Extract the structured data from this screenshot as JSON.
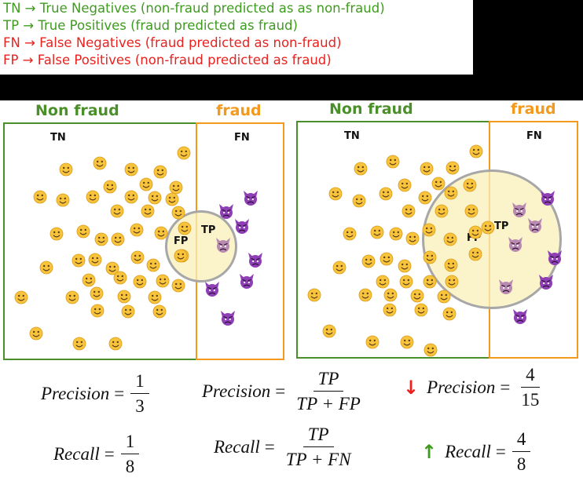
{
  "legend": [
    {
      "text": "TN → True Negatives (non-fraud predicted as as non-fraud)",
      "color": "#3f9b1f"
    },
    {
      "text": "TP → True Positives (fraud predicted as fraud)",
      "color": "#3f9b1f"
    },
    {
      "text": "FN → False Negatives (fraud predicted as non-fraud)",
      "color": "#e8231f"
    },
    {
      "text": "FP → False Positives (non-fraud predicted as fraud)",
      "color": "#e8231f"
    }
  ],
  "colors": {
    "non_fraud": "#4a8f2a",
    "fraud": "#f39a1e",
    "smiley": "#f7c43b",
    "devil": "#8e3fb5",
    "down_arrow": "#e8231f",
    "up_arrow": "#3f9b1f"
  },
  "left_panel": {
    "non_fraud_label": "Non fraud",
    "fraud_label": "fraud",
    "tn": "TN",
    "fn": "FN",
    "fp": "FP",
    "tp": "TP"
  },
  "right_panel": {
    "non_fraud_label": "Non fraud",
    "fraud_label": "fraud",
    "tn": "TN",
    "fn": "FN",
    "fp": "FP",
    "tp": "TP"
  },
  "icons": {
    "non_fraud": "smiley-face-icon",
    "fraud": "devil-face-icon"
  },
  "formulas": {
    "precision_word": "Precision",
    "recall_word": "Recall",
    "equals": "=",
    "left_precision": {
      "num": "1",
      "den": "3"
    },
    "left_recall": {
      "num": "1",
      "den": "8"
    },
    "general_precision": {
      "num": "TP",
      "den": "TP + FP"
    },
    "general_recall": {
      "num": "TP",
      "den": "TP + FN"
    },
    "right_precision": {
      "num": "4",
      "den": "15",
      "arrow": "↓"
    },
    "right_recall": {
      "num": "4",
      "den": "8",
      "arrow": "↑"
    }
  }
}
